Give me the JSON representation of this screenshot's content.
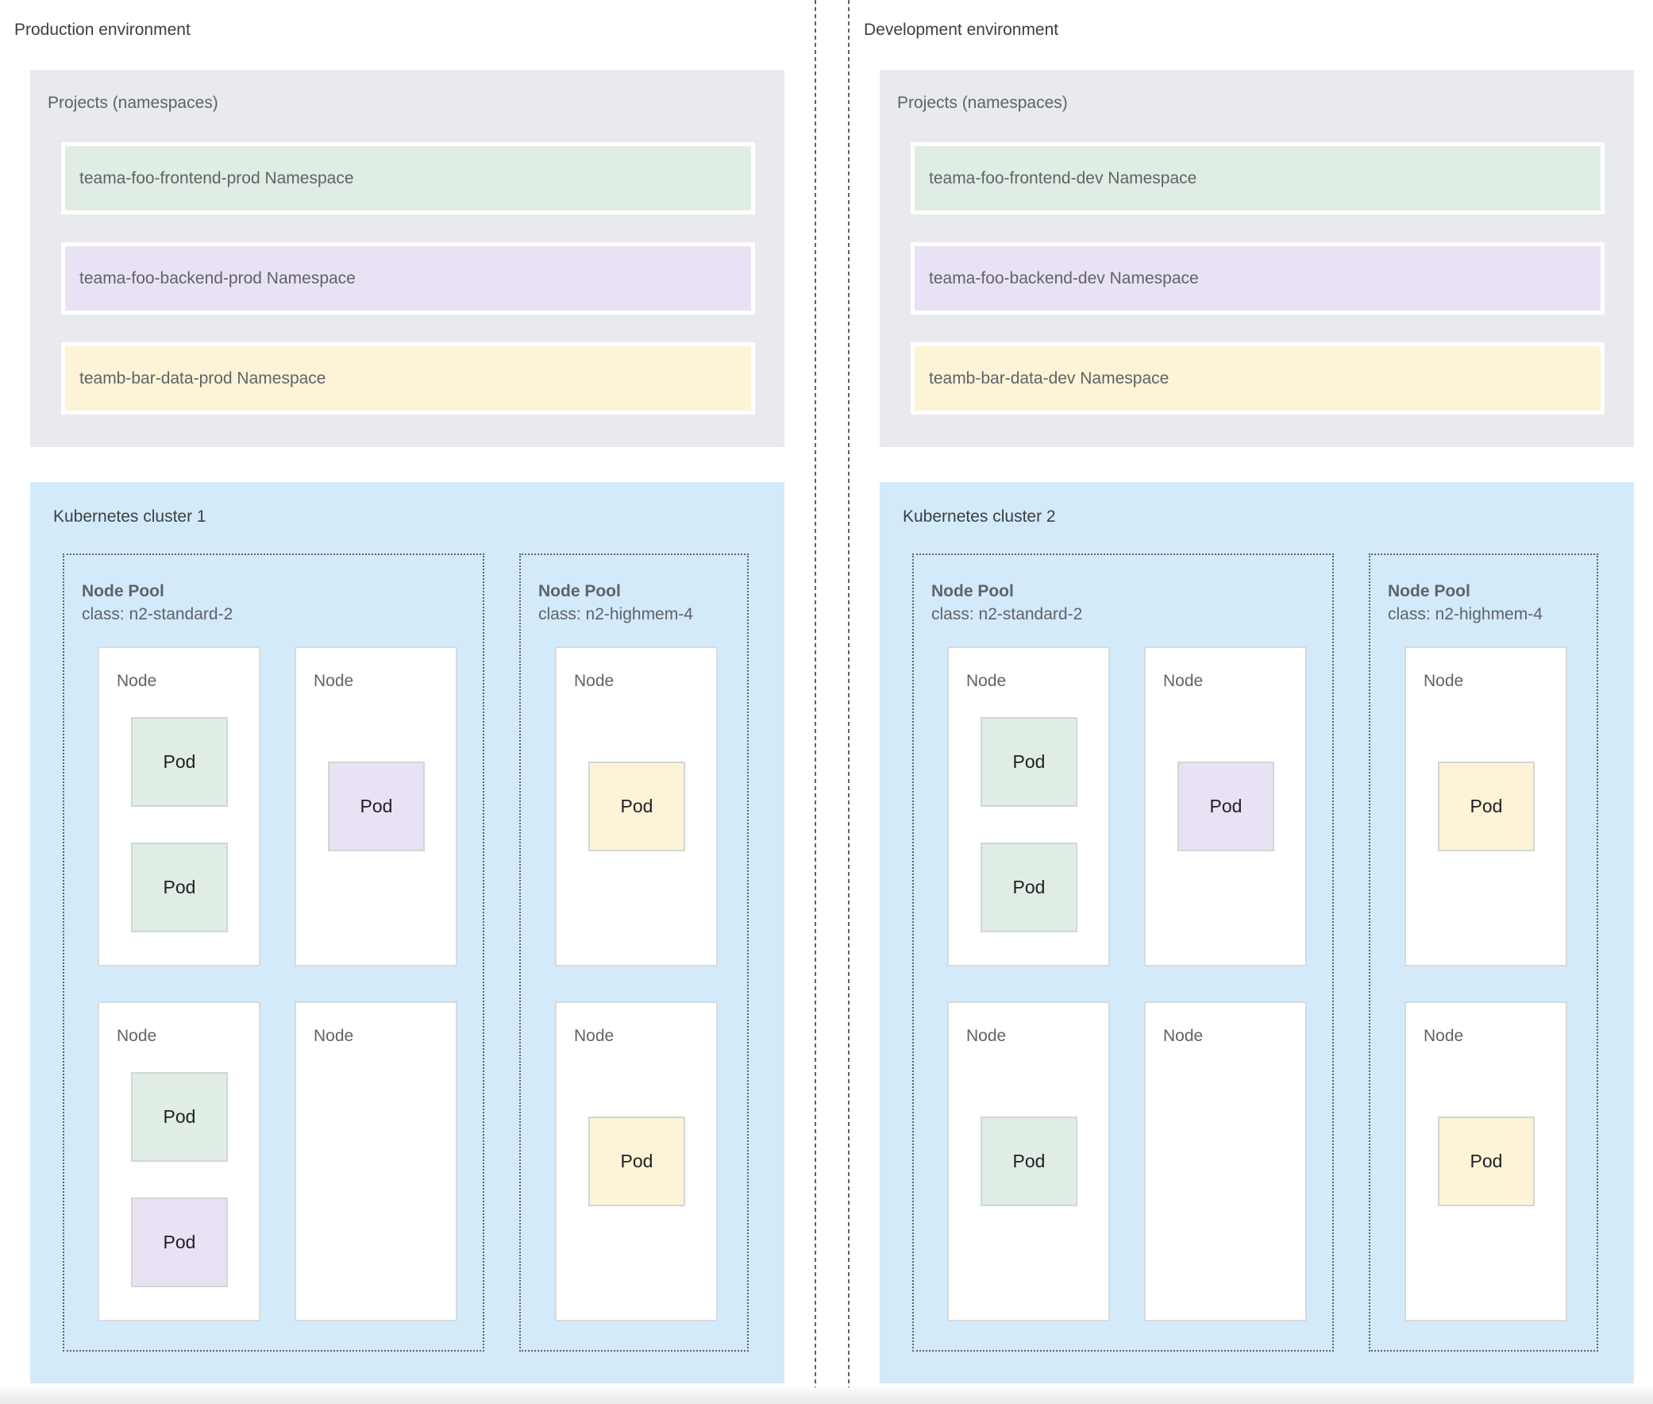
{
  "colors": {
    "green": "#dfede4",
    "purple": "#e9e2f4",
    "yellow": "#fdf3d6",
    "cluster_blue": "#d3eafb",
    "projects_gray": "#e8eaed",
    "divider_gray": "#5f6368",
    "text_dark": "#3c4043",
    "text_gray": "#5f6368"
  },
  "environments": [
    {
      "label": "Production environment",
      "projects": {
        "title": "Projects (namespaces)",
        "namespaces": [
          {
            "label": "teama-foo-frontend-prod Namespace",
            "color": "green"
          },
          {
            "label": "teama-foo-backend-prod Namespace",
            "color": "purple"
          },
          {
            "label": "teamb-bar-data-prod Namespace",
            "color": "yellow"
          }
        ]
      },
      "cluster": {
        "label": "Kubernetes cluster 1",
        "node_pools": [
          {
            "title": "Node Pool",
            "machine_class": "class: n2-standard-2",
            "nodes": [
              {
                "label": "Node",
                "pods": [
                  {
                    "label": "Pod",
                    "color": "green",
                    "slot": "top"
                  },
                  {
                    "label": "Pod",
                    "color": "green",
                    "slot": "bottom"
                  }
                ]
              },
              {
                "label": "Node",
                "pods": [
                  {
                    "label": "Pod",
                    "color": "purple",
                    "slot": "center"
                  }
                ]
              },
              {
                "label": "Node",
                "pods": [
                  {
                    "label": "Pod",
                    "color": "green",
                    "slot": "top"
                  },
                  {
                    "label": "Pod",
                    "color": "purple",
                    "slot": "bottom"
                  }
                ]
              },
              {
                "label": "Node",
                "pods": []
              }
            ]
          },
          {
            "title": "Node Pool",
            "machine_class": "class: n2-highmem-4",
            "nodes": [
              {
                "label": "Node",
                "pods": [
                  {
                    "label": "Pod",
                    "color": "yellow",
                    "slot": "center"
                  }
                ]
              },
              {
                "label": "Node",
                "pods": [
                  {
                    "label": "Pod",
                    "color": "yellow",
                    "slot": "center"
                  }
                ]
              }
            ]
          }
        ]
      }
    },
    {
      "label": "Development environment",
      "projects": {
        "title": "Projects (namespaces)",
        "namespaces": [
          {
            "label": "teama-foo-frontend-dev Namespace",
            "color": "green"
          },
          {
            "label": "teama-foo-backend-dev Namespace",
            "color": "purple"
          },
          {
            "label": "teamb-bar-data-dev Namespace",
            "color": "yellow"
          }
        ]
      },
      "cluster": {
        "label": "Kubernetes cluster 2",
        "node_pools": [
          {
            "title": "Node Pool",
            "machine_class": "class: n2-standard-2",
            "nodes": [
              {
                "label": "Node",
                "pods": [
                  {
                    "label": "Pod",
                    "color": "green",
                    "slot": "top"
                  },
                  {
                    "label": "Pod",
                    "color": "green",
                    "slot": "bottom"
                  }
                ]
              },
              {
                "label": "Node",
                "pods": [
                  {
                    "label": "Pod",
                    "color": "purple",
                    "slot": "center"
                  }
                ]
              },
              {
                "label": "Node",
                "pods": [
                  {
                    "label": "Pod",
                    "color": "green",
                    "slot": "center"
                  }
                ]
              },
              {
                "label": "Node",
                "pods": []
              }
            ]
          },
          {
            "title": "Node Pool",
            "machine_class": "class: n2-highmem-4",
            "nodes": [
              {
                "label": "Node",
                "pods": [
                  {
                    "label": "Pod",
                    "color": "yellow",
                    "slot": "center"
                  }
                ]
              },
              {
                "label": "Node",
                "pods": [
                  {
                    "label": "Pod",
                    "color": "yellow",
                    "slot": "center"
                  }
                ]
              }
            ]
          }
        ]
      }
    }
  ]
}
